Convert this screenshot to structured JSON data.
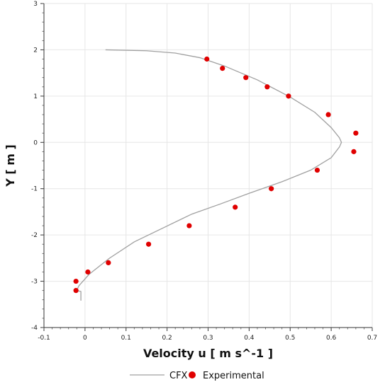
{
  "chart_data": {
    "type": "scatter",
    "title": "",
    "xlabel": "Velocity u [ m s^-1 ]",
    "ylabel": "Y [ m ]",
    "xlim": [
      -0.1,
      0.7
    ],
    "ylim": [
      -4,
      3
    ],
    "x_ticks": [
      "-0.1",
      "0",
      "0.1",
      "0.2",
      "0.3",
      "0.4",
      "0.5",
      "0.6",
      "0.7"
    ],
    "y_ticks": [
      "3",
      "2",
      "1",
      "0",
      "-1",
      "-2",
      "-3",
      "-4"
    ],
    "grid": true,
    "legend_position": "bottom",
    "series": [
      {
        "name": "CFX",
        "kind": "line",
        "color": "#a0a0a0",
        "points": [
          [
            0.05,
            2.0
          ],
          [
            0.15,
            1.98
          ],
          [
            0.22,
            1.93
          ],
          [
            0.28,
            1.83
          ],
          [
            0.34,
            1.65
          ],
          [
            0.42,
            1.35
          ],
          [
            0.5,
            0.98
          ],
          [
            0.56,
            0.65
          ],
          [
            0.6,
            0.32
          ],
          [
            0.62,
            0.1
          ],
          [
            0.625,
            0.0
          ],
          [
            0.62,
            -0.1
          ],
          [
            0.6,
            -0.33
          ],
          [
            0.55,
            -0.6
          ],
          [
            0.48,
            -0.85
          ],
          [
            0.4,
            -1.1
          ],
          [
            0.33,
            -1.33
          ],
          [
            0.26,
            -1.55
          ],
          [
            0.19,
            -1.85
          ],
          [
            0.12,
            -2.15
          ],
          [
            0.06,
            -2.5
          ],
          [
            0.01,
            -2.85
          ],
          [
            -0.015,
            -3.1
          ],
          [
            -0.02,
            -3.2
          ],
          [
            -0.01,
            -3.22
          ],
          [
            -0.01,
            -3.42
          ]
        ]
      },
      {
        "name": "Experimental",
        "kind": "scatter",
        "color": "#e00000",
        "points": [
          [
            0.297,
            1.8
          ],
          [
            0.335,
            1.6
          ],
          [
            0.392,
            1.4
          ],
          [
            0.444,
            1.2
          ],
          [
            0.496,
            1.0
          ],
          [
            0.593,
            0.6
          ],
          [
            0.66,
            0.2
          ],
          [
            0.655,
            -0.2
          ],
          [
            0.566,
            -0.6
          ],
          [
            0.454,
            -1.0
          ],
          [
            0.366,
            -1.4
          ],
          [
            0.254,
            -1.8
          ],
          [
            0.155,
            -2.2
          ],
          [
            0.057,
            -2.6
          ],
          [
            0.007,
            -2.8
          ],
          [
            -0.022,
            -3.0
          ],
          [
            -0.022,
            -3.2
          ]
        ]
      }
    ]
  }
}
